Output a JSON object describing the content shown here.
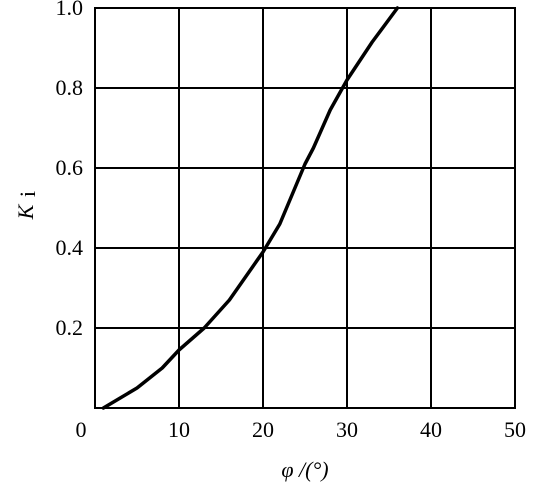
{
  "chart_data": {
    "type": "line",
    "xlabel": "φ /(°)",
    "ylabel": "K",
    "ylabel_sub": "i",
    "x": [
      1,
      3,
      5,
      8,
      10,
      13,
      16,
      18,
      20,
      22,
      24,
      25,
      26,
      28,
      30,
      33,
      36
    ],
    "series": [
      {
        "color": "#000000",
        "values": [
          0,
          0.025,
          0.05,
          0.1,
          0.145,
          0.2,
          0.27,
          0.33,
          0.39,
          0.46,
          0.56,
          0.61,
          0.65,
          0.745,
          0.82,
          0.915,
          1.0
        ]
      }
    ],
    "xlim": [
      0,
      50
    ],
    "ylim": [
      0,
      1
    ],
    "xticks": [
      0,
      10,
      20,
      30,
      40,
      50
    ],
    "yticks": [
      0.2,
      0.4,
      0.6,
      0.8,
      {
        "value": 1,
        "label": "1.0"
      }
    ],
    "grid": true
  }
}
